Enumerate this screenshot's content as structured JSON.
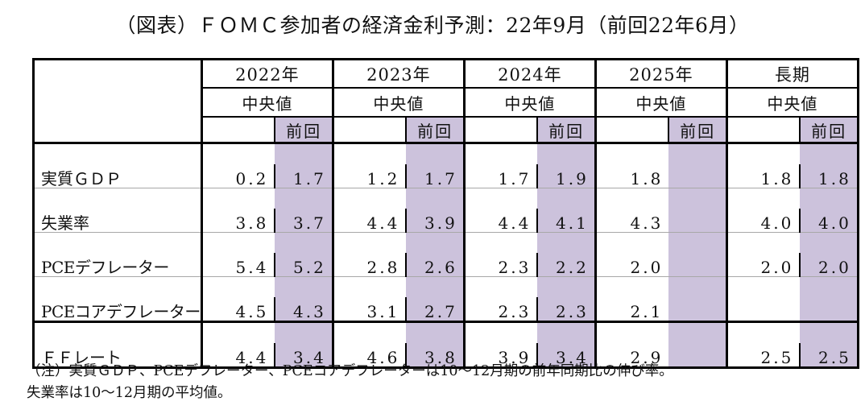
{
  "title": "（図表）ＦＯＭＣ参加者の経済金利予測：22年9月（前回22年6月）",
  "chart_data": {
    "type": "table",
    "title": "（図表）ＦＯＭＣ参加者の経済金利予測：22年9月（前回22年6月）",
    "column_groups": [
      "2022年",
      "2023年",
      "2024年",
      "2025年",
      "長期"
    ],
    "subcolumn_labels": {
      "median": "中央値",
      "previous": "前回"
    },
    "rows": [
      {
        "label": "実質ＧＤＰ",
        "values": [
          [
            "0.2",
            "1.7"
          ],
          [
            "1.2",
            "1.7"
          ],
          [
            "1.7",
            "1.9"
          ],
          [
            "1.8",
            ""
          ],
          [
            "1.8",
            "1.8"
          ]
        ]
      },
      {
        "label": "失業率",
        "values": [
          [
            "3.8",
            "3.7"
          ],
          [
            "4.4",
            "3.9"
          ],
          [
            "4.4",
            "4.1"
          ],
          [
            "4.3",
            ""
          ],
          [
            "4.0",
            "4.0"
          ]
        ]
      },
      {
        "label": "PCEデフレーター",
        "values": [
          [
            "5.4",
            "5.2"
          ],
          [
            "2.8",
            "2.6"
          ],
          [
            "2.3",
            "2.2"
          ],
          [
            "2.0",
            ""
          ],
          [
            "2.0",
            "2.0"
          ]
        ]
      },
      {
        "label": "PCEコアデフレーター",
        "values": [
          [
            "4.5",
            "4.3"
          ],
          [
            "3.1",
            "2.7"
          ],
          [
            "2.3",
            "2.3"
          ],
          [
            "2.1",
            ""
          ],
          [
            "",
            ""
          ]
        ]
      },
      {
        "label": "ＦＦレート",
        "values": [
          [
            "4.4",
            "3.4"
          ],
          [
            "4.6",
            "3.8"
          ],
          [
            "3.9",
            "3.4"
          ],
          [
            "2.9",
            ""
          ],
          [
            "2.5",
            "2.5"
          ]
        ]
      }
    ],
    "notes": [
      "（注）実質ＧＤＰ、PCEデフレーター、PCEコアデフレーターは10～12月期の前年同期比の伸び率。",
      "失業率は10～12月期の平均値。"
    ]
  },
  "colors": {
    "previous_fill": "#ccc2dc",
    "border": "#000000",
    "row_divider": "#a8a8a8"
  }
}
